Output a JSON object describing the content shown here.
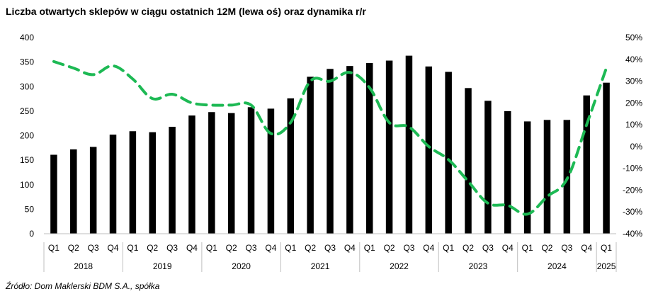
{
  "chart_data": {
    "type": "bar",
    "title": "Liczba otwartych sklepów w ciągu ostatnich 12M (lewa oś) oraz dynamika r/r",
    "source": "Źródło: Dom Maklerski BDM S.A., spółka",
    "categories": [
      "Q1",
      "Q2",
      "Q3",
      "Q4",
      "Q1",
      "Q2",
      "Q3",
      "Q4",
      "Q1",
      "Q2",
      "Q3",
      "Q4",
      "Q1",
      "Q2",
      "Q3",
      "Q4",
      "Q1",
      "Q2",
      "Q3",
      "Q4",
      "Q1",
      "Q2",
      "Q3",
      "Q4",
      "Q1",
      "Q2",
      "Q3",
      "Q4",
      "Q1"
    ],
    "years": [
      {
        "label": "2018",
        "count": 4
      },
      {
        "label": "2019",
        "count": 4
      },
      {
        "label": "2020",
        "count": 4
      },
      {
        "label": "2021",
        "count": 4
      },
      {
        "label": "2022",
        "count": 4
      },
      {
        "label": "2023",
        "count": 4
      },
      {
        "label": "2024",
        "count": 4
      },
      {
        "label": "2025",
        "count": 1
      }
    ],
    "series": [
      {
        "type": "bar",
        "axis": "left",
        "color": "#000000",
        "values": [
          161,
          172,
          177,
          202,
          209,
          207,
          218,
          241,
          248,
          246,
          258,
          255,
          276,
          320,
          336,
          342,
          348,
          353,
          363,
          341,
          330,
          297,
          271,
          250,
          229,
          232,
          232,
          282,
          308
        ]
      },
      {
        "type": "line",
        "axis": "right",
        "style": "dashed",
        "color": "#1DB954",
        "values": [
          39,
          36,
          33,
          37,
          31,
          22,
          24,
          20,
          19,
          19,
          19,
          6,
          11,
          30,
          30,
          34,
          27,
          11,
          9,
          0,
          -6,
          -16,
          -26,
          -27,
          -31,
          -23,
          -15,
          10,
          36
        ]
      }
    ],
    "y_left": {
      "min": 0,
      "max": 400,
      "step": 50,
      "ticks": [
        "0",
        "50",
        "100",
        "150",
        "200",
        "250",
        "300",
        "350",
        "400"
      ]
    },
    "y_right": {
      "min": -40,
      "max": 50,
      "step": 10,
      "ticks": [
        "-40%",
        "-30%",
        "-20%",
        "-10%",
        "0%",
        "10%",
        "20%",
        "30%",
        "40%",
        "50%"
      ]
    },
    "grid": false,
    "legend": "none"
  }
}
